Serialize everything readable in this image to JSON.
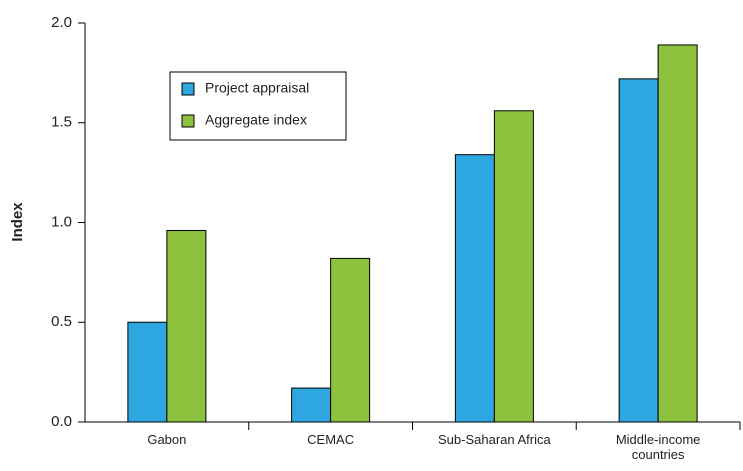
{
  "chart_data": {
    "type": "bar",
    "y_label": "Index",
    "categories": [
      "Gabon",
      "CEMAC",
      "Sub-Saharan Africa",
      "Middle-income countries"
    ],
    "series": [
      {
        "name": "Project appraisal",
        "color": "#2ea6df",
        "values": [
          0.5,
          0.17,
          1.34,
          1.72
        ]
      },
      {
        "name": "Aggregate index",
        "color": "#8dc23f",
        "values": [
          0.96,
          0.82,
          1.56,
          1.89
        ]
      }
    ],
    "ylim": [
      0,
      2
    ],
    "yticks": [
      {
        "value": 0,
        "label": "0.0"
      },
      0.5,
      {
        "value": 1,
        "label": "1.0"
      },
      1.5,
      {
        "value": 2,
        "label": "2.0"
      }
    ],
    "legend": "upper-left"
  }
}
